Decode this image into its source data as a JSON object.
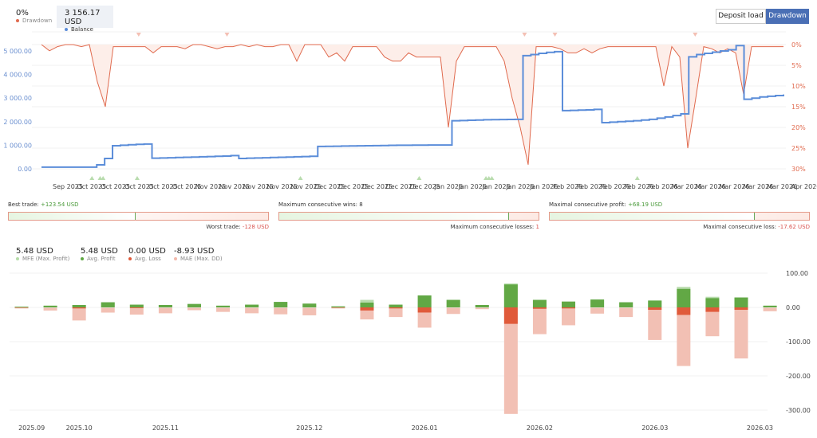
{
  "legend": {
    "drawdown": {
      "value": "0%",
      "label": "Drawdown",
      "color": "#e06a4e"
    },
    "balance": {
      "value": "3 156.17 USD",
      "label": "Balance",
      "color": "#5b8dd9"
    }
  },
  "buttons": {
    "deposit_load": "Deposit load",
    "drawdown": "Drawdown",
    "active": "drawdown"
  },
  "top_chart": {
    "type": "line",
    "left_axis_ticks": [
      "5 000.00",
      "4 000.00",
      "3 000.00",
      "2 000.00",
      "1 000.00",
      "0.00"
    ],
    "left_axis_values": [
      5000,
      4000,
      3000,
      2000,
      1000,
      0
    ],
    "right_axis_ticks": [
      "0%",
      "5%",
      "10%",
      "15%",
      "20%",
      "25%",
      "30%"
    ],
    "x_ticks": [
      "Sep 2025",
      "Oct 2025",
      "Oct 2025",
      "Oct 2025",
      "Oct 2025",
      "Oct 2025",
      "Nov 2025",
      "Nov 2025",
      "Nov 2025",
      "Nov 2025",
      "Nov 2025",
      "Dec 2025",
      "Dec 2025",
      "Dec 2025",
      "Dec 2025",
      "Dec 2025",
      "Jan 2026",
      "Jan 2026",
      "Jan 2026",
      "Jan 2026",
      "Jan 2026",
      "Feb 2026",
      "Feb 2026",
      "Feb 2026",
      "Feb 2026",
      "Feb 2026",
      "Mar 2026",
      "Mar 2026",
      "Mar 2026",
      "Mar 2026",
      "Mar 2026",
      "Apr 2026"
    ],
    "balance": [
      70,
      70,
      70,
      70,
      70,
      70,
      70,
      170,
      440,
      980,
      1000,
      1020,
      1040,
      1050,
      450,
      460,
      470,
      480,
      490,
      500,
      510,
      520,
      530,
      540,
      560,
      440,
      450,
      460,
      470,
      480,
      490,
      500,
      510,
      520,
      530,
      950,
      955,
      960,
      965,
      970,
      975,
      980,
      985,
      990,
      995,
      1000,
      1000,
      1005,
      1005,
      1010,
      1010,
      1010,
      2040,
      2050,
      2060,
      2070,
      2080,
      2085,
      2090,
      2095,
      2100,
      4800,
      4850,
      4900,
      4940,
      4970,
      2470,
      2480,
      2490,
      2500,
      2520,
      1960,
      1980,
      2000,
      2020,
      2040,
      2070,
      2100,
      2150,
      2200,
      2260,
      2330,
      4750,
      4850,
      4900,
      4950,
      5000,
      5050,
      5230,
      2950,
      3000,
      3050,
      3080,
      3110,
      3156
    ],
    "drawdown": [
      0,
      1.5,
      0.5,
      0,
      0,
      0.5,
      0,
      9,
      15,
      0.5,
      0.5,
      0.5,
      0.5,
      0.5,
      2,
      0.5,
      0.5,
      0.5,
      1,
      0,
      0,
      0.5,
      1,
      0.5,
      0.5,
      0,
      0.5,
      0,
      0.5,
      0.5,
      0,
      0,
      4,
      0,
      0,
      0,
      3,
      2,
      4,
      0.5,
      0.5,
      0.5,
      0.5,
      3,
      4,
      4,
      2,
      3,
      3,
      3,
      3,
      20,
      4,
      0.5,
      0.5,
      0.5,
      0.5,
      0.5,
      4,
      13,
      20,
      29,
      0.5,
      0.5,
      0.5,
      1,
      2,
      2,
      1,
      2,
      1,
      0.5,
      0.5,
      0.5,
      0.5,
      0.5,
      0.5,
      0.5,
      10,
      0.5,
      3,
      25,
      13,
      0.5,
      1,
      2,
      1,
      2,
      12,
      0.5,
      0.5,
      0.5,
      0.5,
      0.5
    ],
    "deposit_markers": [
      6.8,
      7.9,
      8.3,
      12.9,
      34.9,
      50.9,
      59.9,
      60.3,
      60.7,
      80.3
    ],
    "withdrawal_markers": [
      13.1,
      25,
      65.1,
      69.2,
      88.1
    ]
  },
  "stats": {
    "best_trade": {
      "label": "Best trade:",
      "value": "+123.54 USD"
    },
    "worst_trade": {
      "label": "Worst trade:",
      "value": "-128 USD"
    },
    "trade_ratio": 0.49,
    "max_wins": {
      "label": "Maximum consecutive wins:",
      "value": "8"
    },
    "max_losses": {
      "label": "Maximum consecutive losses:",
      "value": "1"
    },
    "wins_ratio": 0.887,
    "max_profit": {
      "label": "Maximal consecutive profit:",
      "value": "+68.19 USD"
    },
    "max_loss": {
      "label": "Maximal consecutive loss:",
      "value": "-17.62 USD"
    },
    "profit_ratio": 0.79
  },
  "month_stats": [
    {
      "value": "5.48 USD",
      "label": "MFE (Max. Profit)",
      "color": "#b5dca8"
    },
    {
      "value": "5.48 USD",
      "label": "Avg. Profit",
      "color": "#5fa843"
    },
    {
      "value": "0.00 USD",
      "label": "Avg. Loss",
      "color": "#e05a3a"
    },
    {
      "value": "-8.93 USD",
      "label": "MAE (Max. DD)",
      "color": "#f2b8aa"
    }
  ],
  "chart_data": {
    "type": "bar",
    "y_ticks": [
      "100.00",
      "0.00",
      "-100.00",
      "-200.00",
      "-300.00"
    ],
    "y_tick_values": [
      100,
      0,
      -100,
      -200,
      -300
    ],
    "ylim": [
      -310,
      100
    ],
    "x_ticks": [
      "2025.09",
      "2025.10",
      "2025.11",
      "2025.12",
      "2026.01",
      "2026.02",
      "2026.03",
      "2026.03"
    ],
    "x_tick_bar_index": [
      0.35,
      2,
      5,
      10,
      14,
      18,
      22,
      25.65
    ],
    "series": [
      {
        "name": "MFE (Max. Profit)",
        "values": [
          2,
          5,
          7,
          15,
          8,
          7,
          10,
          5,
          8,
          16,
          11,
          3,
          22,
          8,
          35,
          22,
          7,
          70,
          22,
          17,
          23,
          15,
          20,
          60,
          31,
          29,
          5
        ]
      },
      {
        "name": "Avg. Profit",
        "values": [
          2,
          5,
          7,
          15,
          8,
          7,
          10,
          5,
          8,
          16,
          11,
          3,
          14,
          8,
          35,
          22,
          7,
          67,
          22,
          17,
          23,
          15,
          20,
          54,
          27,
          29,
          5
        ]
      },
      {
        "name": "Avg. Loss",
        "values": [
          -1,
          0,
          -3,
          0,
          -2,
          0,
          0,
          0,
          0,
          0,
          0,
          -1,
          -9,
          -3,
          -15,
          0,
          0,
          -48,
          -4,
          -3,
          0,
          0,
          -7,
          -22,
          -13,
          -7,
          0
        ]
      },
      {
        "name": "MAE (Max. DD)",
        "values": [
          -2,
          -8,
          -37,
          -14,
          -20,
          -16,
          -7,
          -12,
          -16,
          -19,
          -22,
          -2,
          -34,
          -27,
          -58,
          -18,
          -4,
          -310,
          -77,
          -51,
          -17,
          -27,
          -94,
          -170,
          -83,
          -148,
          -10
        ]
      }
    ],
    "grid": true
  }
}
